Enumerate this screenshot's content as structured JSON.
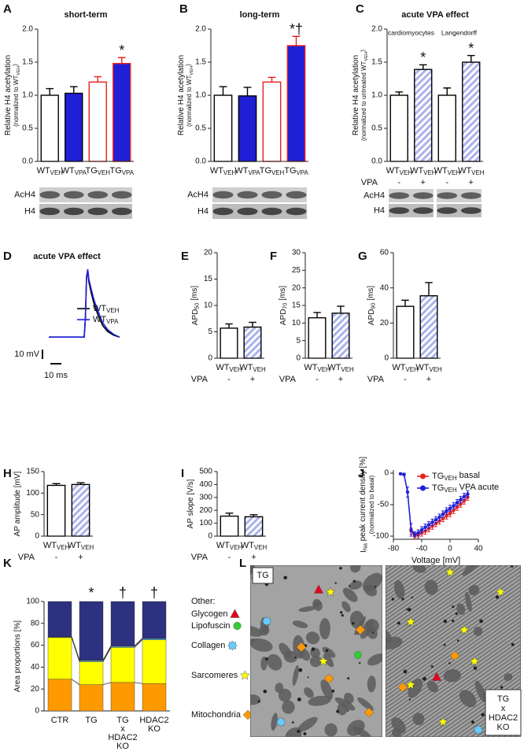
{
  "chart_data": [
    {
      "panel": "A",
      "type": "bar",
      "title": "short-term",
      "ylabel": [
        [
          "Relative H4 acetylation"
        ],
        [
          "(normalized to WT",
          "VEH",
          ")"
        ]
      ],
      "categories": [
        [
          "WT",
          "VEH"
        ],
        [
          "WT",
          "VPA"
        ],
        [
          "TG",
          "VEH"
        ],
        [
          "TG",
          "VPA"
        ]
      ],
      "values": [
        1.0,
        1.03,
        1.2,
        1.48
      ],
      "errors": [
        0.1,
        0.1,
        0.08,
        0.09
      ],
      "colors": [
        "#ffffff",
        "#1f1fd6",
        "#ffffff",
        "#1f1fd6"
      ],
      "edgecolors": [
        "#000000",
        "#000000",
        "#e8201c",
        "#e8201c"
      ],
      "annotations": [
        null,
        null,
        null,
        "*"
      ],
      "ylim": [
        0,
        2
      ],
      "yticks": [
        {
          "value": 0,
          "label": "0.0"
        },
        {
          "value": 0.5,
          "label": "0.5"
        },
        {
          "value": 1,
          "label": "1.0"
        },
        {
          "value": 1.5,
          "label": "1.5"
        },
        {
          "value": 2,
          "label": "2.0"
        }
      ],
      "blot_labels": [
        "AcH4",
        "H4"
      ]
    },
    {
      "panel": "B",
      "type": "bar",
      "title": "long-term",
      "ylabel": [
        [
          "Relative H4 acetylation"
        ],
        [
          "(normalized to WT",
          "VEH",
          ")"
        ]
      ],
      "categories": [
        [
          "WT",
          "VEH"
        ],
        [
          "WT",
          "VPA"
        ],
        [
          "TG",
          "VEH"
        ],
        [
          "TG",
          "VPA"
        ]
      ],
      "values": [
        1.0,
        0.99,
        1.2,
        1.75
      ],
      "errors": [
        0.13,
        0.13,
        0.07,
        0.14
      ],
      "colors": [
        "#ffffff",
        "#1f1fd6",
        "#ffffff",
        "#1f1fd6"
      ],
      "edgecolors": [
        "#000000",
        "#000000",
        "#e8201c",
        "#e8201c"
      ],
      "annotations": [
        null,
        null,
        null,
        "*†"
      ],
      "ylim": [
        0,
        2
      ],
      "yticks": [
        {
          "value": 0,
          "label": "0.0"
        },
        {
          "value": 0.5,
          "label": "0.5"
        },
        {
          "value": 1,
          "label": "1.0"
        },
        {
          "value": 1.5,
          "label": "1.5"
        },
        {
          "value": 2,
          "label": "2.0"
        }
      ],
      "blot_labels": [
        "AcH4",
        "H4"
      ]
    },
    {
      "panel": "C",
      "type": "bar",
      "title": "acute VPA effect",
      "group_labels": [
        "cardiomyocytes",
        "Langendorff"
      ],
      "ylabel": [
        [
          "Relative H4 acetylation"
        ],
        [
          "(normalized to untreated WT",
          "VEH",
          ")"
        ]
      ],
      "categories": [
        [
          "WT",
          "VEH"
        ],
        [
          "WT",
          "VEH"
        ],
        [
          "WT",
          "VEH"
        ],
        [
          "WT",
          "VEH"
        ]
      ],
      "values": [
        1.0,
        1.39,
        1.0,
        1.5
      ],
      "errors": [
        0.05,
        0.07,
        0.11,
        0.1
      ],
      "colors": [
        "#ffffff",
        "#ffffff",
        "#ffffff",
        "#ffffff"
      ],
      "edgecolors": [
        "#000000",
        "#000000",
        "#000000",
        "#000000"
      ],
      "hatch": [
        false,
        true,
        false,
        true
      ],
      "hatch_color": "#aab2ec",
      "annotations": [
        null,
        "*",
        null,
        "*"
      ],
      "vpa_label": "VPA",
      "vpa": [
        "-",
        "+",
        "-",
        "+"
      ],
      "ylim": [
        0,
        2
      ],
      "yticks": [
        {
          "value": 0,
          "label": "0.0"
        },
        {
          "value": 0.5,
          "label": "0.5"
        },
        {
          "value": 1,
          "label": "1.0"
        },
        {
          "value": 1.5,
          "label": "1.5"
        },
        {
          "value": 2,
          "label": "2.0"
        }
      ],
      "blot_labels": [
        "AcH4",
        "H4"
      ]
    },
    {
      "panel": "D",
      "type": "trace",
      "title": "acute VPA effect",
      "x": [
        0,
        20,
        30,
        31,
        32,
        33,
        34,
        36,
        38,
        40,
        43,
        46,
        50,
        55,
        60
      ],
      "series": [
        {
          "name": [
            "WT",
            "VEH"
          ],
          "color": "#000000",
          "values": [
            0,
            0,
            0,
            20,
            65,
            72,
            60,
            48,
            38,
            30,
            20,
            12,
            6,
            2,
            0
          ]
        },
        {
          "name": [
            "WT",
            "VPA"
          ],
          "color": "#2020e0",
          "values": [
            0,
            0,
            0,
            20,
            66,
            74,
            63,
            52,
            42,
            34,
            24,
            15,
            8,
            3,
            0
          ]
        }
      ],
      "xlim": [
        0,
        60
      ],
      "ylim": [
        -5,
        80
      ],
      "scalebar_labels": [
        "10 mV",
        "10 ms"
      ]
    },
    {
      "panel": "E",
      "type": "bar",
      "ylabel": [
        [
          "APD",
          "50",
          " [ms]"
        ]
      ],
      "categories": [
        [
          "WT",
          "VEH"
        ],
        [
          "WT",
          "VEH"
        ]
      ],
      "values": [
        5.7,
        5.9
      ],
      "errors": [
        0.8,
        0.9
      ],
      "colors": [
        "#ffffff",
        "#ffffff"
      ],
      "edgecolors": [
        "#000000",
        "#000000"
      ],
      "hatch": [
        false,
        true
      ],
      "hatch_color": "#aab2ec",
      "vpa_label": "VPA",
      "vpa": [
        "-",
        "+"
      ],
      "ylim": [
        0,
        20
      ],
      "yticks": [
        0,
        5,
        10,
        15,
        20
      ]
    },
    {
      "panel": "F",
      "type": "bar",
      "ylabel": [
        [
          "APD",
          "70",
          " [ms]"
        ]
      ],
      "categories": [
        [
          "WT",
          "VEH"
        ],
        [
          "WT",
          "VEH"
        ]
      ],
      "values": [
        11.5,
        12.8
      ],
      "errors": [
        1.5,
        2.0
      ],
      "colors": [
        "#ffffff",
        "#ffffff"
      ],
      "edgecolors": [
        "#000000",
        "#000000"
      ],
      "hatch": [
        false,
        true
      ],
      "hatch_color": "#aab2ec",
      "vpa_label": "VPA",
      "vpa": [
        "-",
        "+"
      ],
      "ylim": [
        0,
        30
      ],
      "yticks": [
        0,
        5,
        10,
        15,
        20,
        25,
        30
      ]
    },
    {
      "panel": "G",
      "type": "bar",
      "ylabel": [
        [
          "APD",
          "90",
          " [ms]"
        ]
      ],
      "categories": [
        [
          "WT",
          "VEH"
        ],
        [
          "WT",
          "VEH"
        ]
      ],
      "values": [
        29.5,
        35.5
      ],
      "errors": [
        3.5,
        7.5
      ],
      "colors": [
        "#ffffff",
        "#ffffff"
      ],
      "edgecolors": [
        "#000000",
        "#000000"
      ],
      "hatch": [
        false,
        true
      ],
      "hatch_color": "#aab2ec",
      "vpa_label": "VPA",
      "vpa": [
        "-",
        "+"
      ],
      "ylim": [
        0,
        60
      ],
      "yticks": [
        0,
        20,
        40,
        60
      ]
    },
    {
      "panel": "H",
      "type": "bar",
      "ylabel": [
        [
          "AP amplitude [mV]"
        ]
      ],
      "categories": [
        [
          "WT",
          "VEH"
        ],
        [
          "WT",
          "VEH"
        ]
      ],
      "values": [
        118,
        120
      ],
      "errors": [
        4,
        4
      ],
      "colors": [
        "#ffffff",
        "#ffffff"
      ],
      "edgecolors": [
        "#000000",
        "#000000"
      ],
      "hatch": [
        false,
        true
      ],
      "hatch_color": "#aab2ec",
      "vpa_label": "VPA",
      "vpa": [
        "-",
        "+"
      ],
      "ylim": [
        0,
        150
      ],
      "yticks": [
        0,
        50,
        100,
        150
      ]
    },
    {
      "panel": "I",
      "type": "bar",
      "ylabel": [
        [
          "AP slope [V/s]"
        ]
      ],
      "categories": [
        [
          "WT",
          "VEH"
        ],
        [
          "WT",
          "VEH"
        ]
      ],
      "values": [
        155,
        150
      ],
      "errors": [
        23,
        16
      ],
      "colors": [
        "#ffffff",
        "#ffffff"
      ],
      "edgecolors": [
        "#000000",
        "#000000"
      ],
      "hatch": [
        false,
        true
      ],
      "hatch_color": "#aab2ec",
      "vpa_label": "VPA",
      "vpa": [
        "-",
        "+"
      ],
      "ylim": [
        0,
        500
      ],
      "yticks": [
        0,
        100,
        200,
        300,
        400,
        500
      ]
    },
    {
      "panel": "J",
      "type": "line",
      "ylabel": [
        [
          "I",
          "Na",
          " peak current density [%]"
        ],
        [
          "(normalized to basal)"
        ]
      ],
      "xlabel": "Voltage [mV]",
      "x": [
        -70,
        -65,
        -60,
        -55,
        -50,
        -45,
        -40,
        -35,
        -30,
        -25,
        -20,
        -15,
        -10,
        -5,
        0,
        5,
        10,
        15,
        20,
        25
      ],
      "series": [
        {
          "name": [
            "TG",
            "VEH",
            " basal"
          ],
          "color": "#e8201c",
          "values": [
            null,
            null,
            null,
            -92,
            -99,
            -98,
            -95,
            -92,
            -88,
            -84,
            -80,
            -76,
            -72,
            -68,
            -64,
            -59,
            -54,
            -49,
            -44,
            -38
          ],
          "errors": [
            null,
            null,
            null,
            5,
            4,
            5,
            5,
            5,
            5,
            5,
            5,
            5,
            5,
            5,
            5,
            5,
            5,
            5,
            5,
            5
          ]
        },
        {
          "name": [
            "TG",
            "VEH",
            " VPA acute"
          ],
          "color": "#1f1fd6",
          "values": [
            -1,
            -2,
            -30,
            -90,
            -97,
            -95,
            -90,
            -86,
            -82,
            -78,
            -74,
            -70,
            -65,
            -60,
            -56,
            -52,
            -47,
            -42,
            -37,
            -33
          ],
          "errors": [
            1,
            2,
            8,
            10,
            4,
            5,
            5,
            5,
            5,
            5,
            5,
            5,
            5,
            5,
            5,
            5,
            5,
            5,
            5,
            5
          ]
        }
      ],
      "xlim": [
        -80,
        40
      ],
      "xticks": [
        -80,
        -40,
        0,
        40
      ],
      "ylim": [
        -105,
        5
      ],
      "yticks": [
        -100,
        -50,
        0
      ]
    },
    {
      "panel": "K",
      "type": "stacked_bar",
      "ylabel": [
        [
          "Area proportions [%]"
        ]
      ],
      "categories": [
        [
          "CTR"
        ],
        [
          "TG"
        ],
        [
          "TG",
          "x",
          "HDAC2",
          "KO"
        ],
        [
          "HDAC2",
          "KO"
        ]
      ],
      "annotations": [
        null,
        "*",
        "†",
        "†"
      ],
      "series": [
        {
          "name": "Mitochondria",
          "color": "#ff9900",
          "marker": "diamond",
          "values": [
            29,
            24,
            26,
            25
          ]
        },
        {
          "name": "Sarcomeres",
          "color": "#ffff00",
          "marker": "star",
          "values": [
            38,
            21,
            32,
            40
          ]
        },
        {
          "name": "Collagen",
          "color": "#66ccff",
          "marker": "gear",
          "values": [
            0.5,
            1,
            1,
            1
          ]
        },
        {
          "name": "Lipofuscin",
          "color": "#33cc33",
          "marker": "circle",
          "values": [
            0.2,
            0.2,
            0.2,
            0.2
          ]
        },
        {
          "name": "Glycogen",
          "color": "#e8001c",
          "marker": "triangle",
          "values": [
            0.2,
            0.2,
            0.2,
            0.2
          ]
        },
        {
          "name": "Other:",
          "color": "#2e3080",
          "values": [
            32.1,
            53.6,
            40.6,
            33.6
          ]
        }
      ],
      "ylim": [
        0,
        100
      ],
      "yticks": [
        0,
        20,
        40,
        60,
        80,
        100
      ]
    },
    {
      "panel": "L",
      "type": "image",
      "labels": [
        [
          "TG"
        ],
        [
          "TG",
          "x",
          "HDAC2",
          "KO"
        ]
      ]
    }
  ]
}
